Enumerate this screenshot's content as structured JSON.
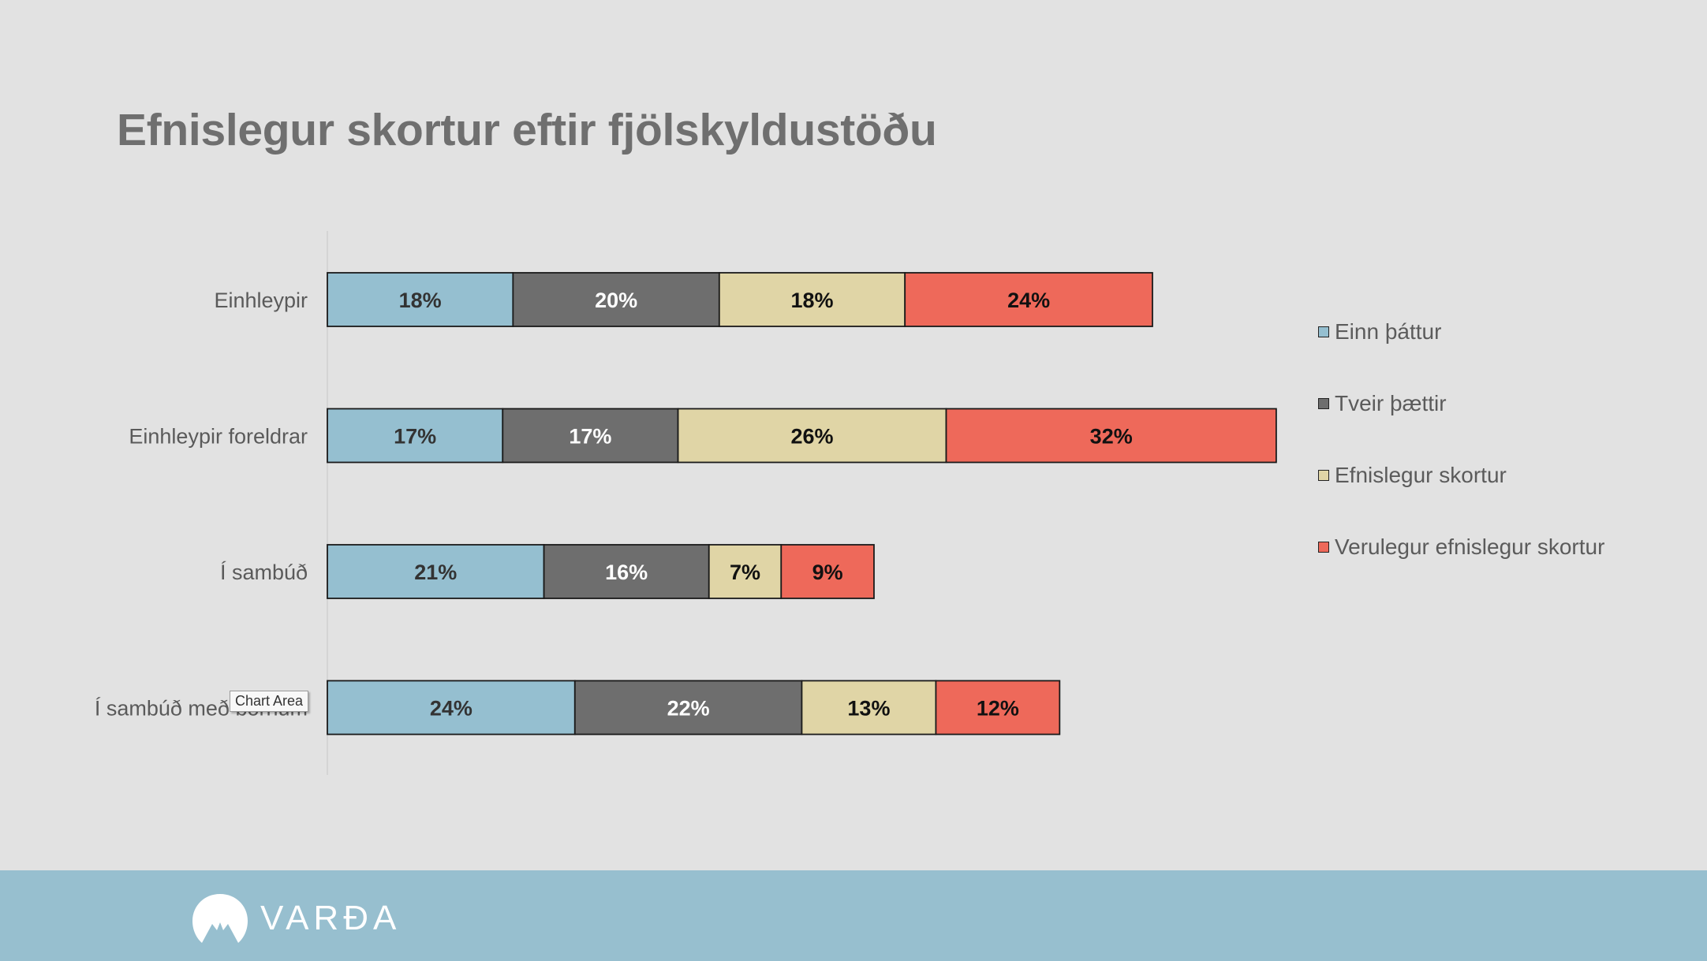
{
  "slide": {
    "title": "Efnislegur skortur eftir fjölskyldustöðu",
    "tooltip": "Chart Area",
    "logo_text": "VARÐA"
  },
  "chart_data": {
    "type": "bar",
    "orientation": "horizontal",
    "stacked": true,
    "title": "Efnislegur skortur eftir fjölskyldustöðu",
    "xlabel": "",
    "ylabel": "",
    "grid": false,
    "legend_position": "right",
    "categories": [
      "Einhleypir",
      "Einhleypir foreldrar",
      "Í sambúð",
      "Í sambúð með börnum"
    ],
    "series": [
      {
        "name": "Einn þáttur",
        "color": "#95bfd0",
        "label_color": "#333333",
        "values": [
          18,
          17,
          21,
          24
        ]
      },
      {
        "name": "Tveir þættir",
        "color": "#6e6e6e",
        "label_color": "#ffffff",
        "values": [
          20,
          17,
          16,
          22
        ]
      },
      {
        "name": "Efnislegur skortur",
        "color": "#e0d5a6",
        "label_color": "#111111",
        "values": [
          18,
          26,
          7,
          13
        ]
      },
      {
        "name": "Verulegur efnislegur skortur",
        "color": "#ee695a",
        "label_color": "#111111",
        "values": [
          24,
          32,
          9,
          12
        ]
      }
    ],
    "value_suffix": "%"
  }
}
